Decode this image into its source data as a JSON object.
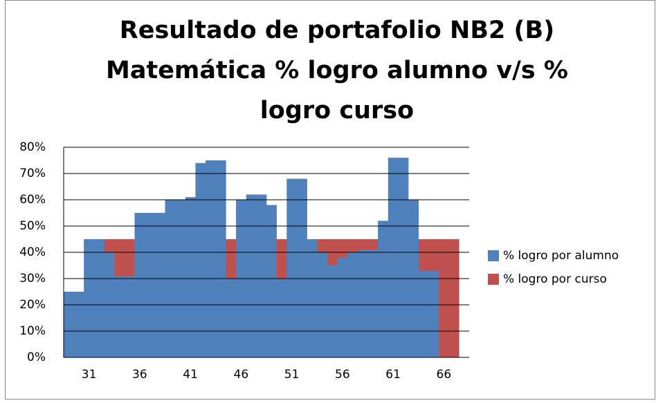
{
  "chart_data": {
    "type": "bar",
    "title": [
      "Resultado de portafolio NB2 (B)",
      "Matemática % logro alumno v/s %",
      "logro curso"
    ],
    "categories": [
      null,
      null,
      "31",
      null,
      null,
      null,
      null,
      "36",
      null,
      null,
      null,
      null,
      "41",
      null,
      null,
      null,
      null,
      "46",
      null,
      null,
      null,
      null,
      "51",
      null,
      null,
      null,
      null,
      "56",
      null,
      null,
      null,
      null,
      "61",
      null,
      null,
      null,
      null,
      "66",
      null,
      null
    ],
    "series": [
      {
        "name": "% logro por alumno",
        "color": "#4f81bd",
        "values": [
          25,
          25,
          45,
          45,
          40,
          31,
          31,
          55,
          55,
          55,
          60,
          60,
          61,
          74,
          75,
          75,
          30,
          60,
          62,
          62,
          58,
          30,
          68,
          68,
          45,
          40,
          35,
          38,
          40,
          41,
          41,
          52,
          76,
          76,
          60,
          33,
          33,
          0,
          0,
          0
        ]
      },
      {
        "name": "% logro por curso",
        "color": "#c0504d",
        "values": [
          0,
          0,
          45,
          45,
          45,
          45,
          45,
          45,
          45,
          45,
          45,
          45,
          45,
          45,
          45,
          45,
          45,
          45,
          45,
          45,
          45,
          45,
          45,
          45,
          45,
          45,
          45,
          45,
          45,
          45,
          45,
          45,
          45,
          45,
          45,
          45,
          45,
          45,
          45,
          0
        ]
      }
    ],
    "ylim": [
      0,
      80
    ],
    "yticks": [
      {
        "value": 0,
        "label": "0%"
      },
      {
        "value": 10,
        "label": "10%"
      },
      {
        "value": 20,
        "label": "20%"
      },
      {
        "value": 30,
        "label": "30%"
      },
      {
        "value": 40,
        "label": "40%"
      },
      {
        "value": 50,
        "label": "50%"
      },
      {
        "value": 60,
        "label": "60%"
      },
      {
        "value": 70,
        "label": "70%"
      },
      {
        "value": 80,
        "label": "80%"
      }
    ],
    "grid": true
  }
}
